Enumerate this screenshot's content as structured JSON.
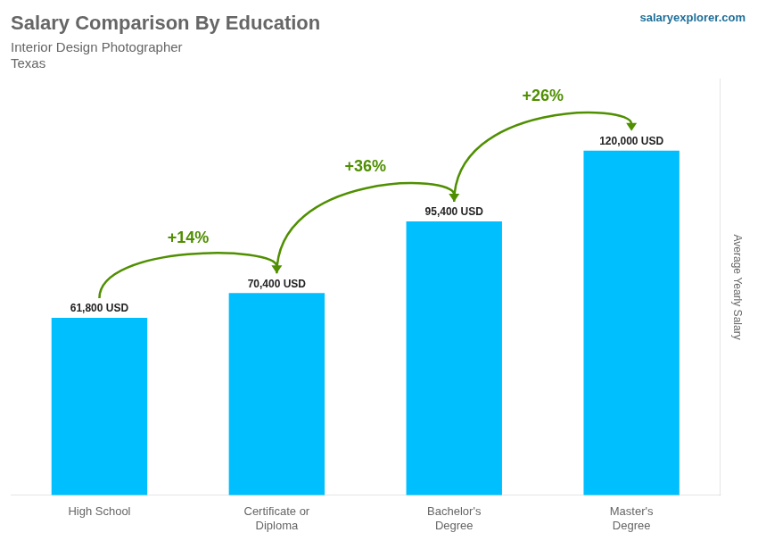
{
  "chart_data": {
    "type": "bar",
    "title": "Salary Comparison By Education",
    "subtitle": [
      "Interior Design Photographer",
      "Texas"
    ],
    "ylabel": "Average Yearly Salary",
    "categories": [
      "High School",
      "Certificate or\nDiploma",
      "Bachelor's\nDegree",
      "Master's\nDegree"
    ],
    "values": [
      61800,
      70400,
      95400,
      120000
    ],
    "value_labels": [
      "61,800 USD",
      "70,400 USD",
      "95,400 USD",
      "120,000 USD"
    ],
    "data_labels": true,
    "color": "#00BFFF",
    "ylim": [
      0,
      145000
    ],
    "grid": false,
    "tick_labels": "x",
    "annotations": [
      {
        "text": "+14%",
        "from": "High School",
        "to": "Certificate or\nDiploma"
      },
      {
        "text": "+36%",
        "from": "Certificate or\nDiploma",
        "to": "Bachelor's\nDegree"
      },
      {
        "text": "+26%",
        "from": "Bachelor's\nDegree",
        "to": "Master's\nDegree"
      },
      {
        "text": "salaryexplorer.com"
      }
    ]
  }
}
